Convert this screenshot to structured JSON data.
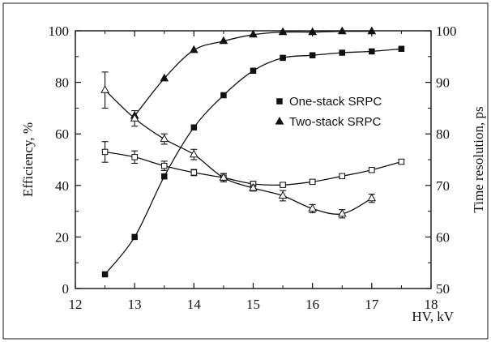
{
  "chart_data": {
    "type": "scatter",
    "title": "",
    "xlabel": "HV, kV",
    "ylabel_left": "Efficiency, %",
    "ylabel_right": "Time resolution, ps",
    "xlim": [
      12,
      18
    ],
    "ylim_left": [
      0,
      100
    ],
    "ylim_right": [
      50,
      100
    ],
    "x_ticks": [
      "12",
      "13",
      "14",
      "15",
      "16",
      "17",
      "18"
    ],
    "y_left_ticks": [
      "0",
      "20",
      "40",
      "60",
      "80",
      "100"
    ],
    "y_right_ticks": [
      "50",
      "60",
      "70",
      "80",
      "90",
      "100"
    ],
    "grid": false,
    "legend_position": "right",
    "legend": [
      {
        "label": "One-stack SRPC",
        "marker": "square"
      },
      {
        "label": "Two-stack SRPC",
        "marker": "triangle"
      }
    ],
    "series": [
      {
        "name": "One-stack SRPC",
        "quantity": "efficiency",
        "axis": "left",
        "marker": "filled-square",
        "x": [
          12.5,
          13.0,
          13.5,
          14.0,
          14.5,
          15.0,
          15.5,
          16.0,
          16.5,
          17.0,
          17.5
        ],
        "y": [
          5.5,
          20,
          43.5,
          62.5,
          75,
          84.5,
          89.5,
          90.5,
          91.5,
          92,
          93
        ]
      },
      {
        "name": "Two-stack SRPC",
        "quantity": "efficiency",
        "axis": "left",
        "marker": "filled-triangle",
        "x": [
          13.0,
          13.5,
          14.0,
          14.5,
          15.0,
          15.5,
          16.0,
          16.5,
          17.0
        ],
        "y": [
          67,
          81.5,
          92.5,
          96,
          98.5,
          99.5,
          99.5,
          99.8,
          99.8
        ]
      },
      {
        "name": "One-stack SRPC",
        "quantity": "time_resolution",
        "axis": "right",
        "marker": "open-square",
        "x": [
          12.5,
          13.0,
          13.5,
          14.0,
          14.5,
          15.0,
          15.5,
          16.0,
          16.5,
          17.0,
          17.5
        ],
        "y": [
          76.5,
          75.5,
          73.8,
          72.5,
          71.5,
          70.3,
          70.1,
          70.7,
          71.8,
          73,
          74.6
        ],
        "error": [
          2.0,
          1.2,
          0.9,
          0.6,
          0.8,
          0.5,
          0.4,
          0.4,
          0.4,
          0.4,
          0.4
        ]
      },
      {
        "name": "Two-stack SRPC",
        "quantity": "time_resolution",
        "axis": "right",
        "marker": "open-triangle",
        "x": [
          12.5,
          13.0,
          13.5,
          14.0,
          14.5,
          15.0,
          15.5,
          16.0,
          16.5,
          17.0
        ],
        "y": [
          88.5,
          83,
          79,
          76,
          71.5,
          69.5,
          68,
          65.5,
          64.5,
          67.5
        ],
        "error": [
          3.5,
          1.5,
          1.0,
          1.0,
          0.8,
          0.6,
          1.0,
          0.8,
          0.8,
          0.8
        ]
      }
    ]
  }
}
